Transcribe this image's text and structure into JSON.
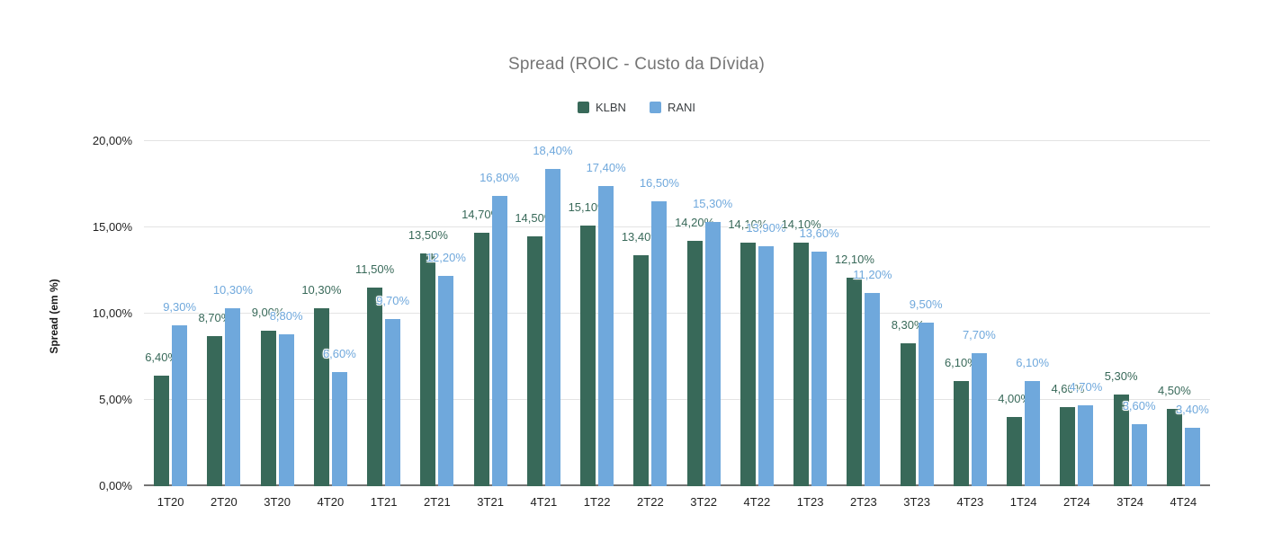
{
  "chart_data": {
    "type": "bar",
    "title": "Spread (ROIC - Custo da Dívida)",
    "y_axis_title": "Spread (em %)",
    "legend_position": "top",
    "grid": true,
    "ylim": [
      0,
      20
    ],
    "y_ticks": [
      "0,00%",
      "5,00%",
      "10,00%",
      "15,00%",
      "20,00%"
    ],
    "categories": [
      "1T20",
      "2T20",
      "3T20",
      "4T20",
      "1T21",
      "2T21",
      "3T21",
      "4T21",
      "1T22",
      "2T22",
      "3T22",
      "4T22",
      "1T23",
      "2T23",
      "3T23",
      "4T23",
      "1T24",
      "2T24",
      "3T24",
      "4T24"
    ],
    "series": [
      {
        "name": "KLBN",
        "color": "#386959",
        "values": [
          6.4,
          8.7,
          9.0,
          10.3,
          11.5,
          13.5,
          14.7,
          14.5,
          15.1,
          13.4,
          14.2,
          14.1,
          14.1,
          12.1,
          8.3,
          6.1,
          4.0,
          4.6,
          5.3,
          4.5
        ],
        "labels": [
          "6,40%",
          "8,70%",
          "9,00%",
          "10,30%",
          "11,50%",
          "13,50%",
          "14,70%",
          "14,50%",
          "15,10%",
          "13,40%",
          "14,20%",
          "14,10%",
          "14,10%",
          "12,10%",
          "8,30%",
          "6,10%",
          "4,00%",
          "4,60%",
          "5,30%",
          "4,50%"
        ]
      },
      {
        "name": "RANI",
        "color": "#6fa8dc",
        "values": [
          9.3,
          10.3,
          8.8,
          6.6,
          9.7,
          12.2,
          16.8,
          18.4,
          17.4,
          16.5,
          15.3,
          13.9,
          13.6,
          11.2,
          9.5,
          7.7,
          6.1,
          4.7,
          3.6,
          3.4
        ],
        "labels": [
          "9,30%",
          "10,30%",
          "8,80%",
          "6,60%",
          "9,70%",
          "12,20%",
          "16,80%",
          "18,40%",
          "17,40%",
          "16,50%",
          "15,30%",
          "13,90%",
          "13,60%",
          "11,20%",
          "9,50%",
          "7,70%",
          "6,10%",
          "4,70%",
          "3,60%",
          "3,40%"
        ]
      }
    ],
    "colors": {
      "title_text": "#757575",
      "axis_text": "#1f1f1f",
      "legend_text": "#3c4043",
      "gridline": "#e3e3e3",
      "baseline": "#747474",
      "background": "#ffffff"
    }
  }
}
